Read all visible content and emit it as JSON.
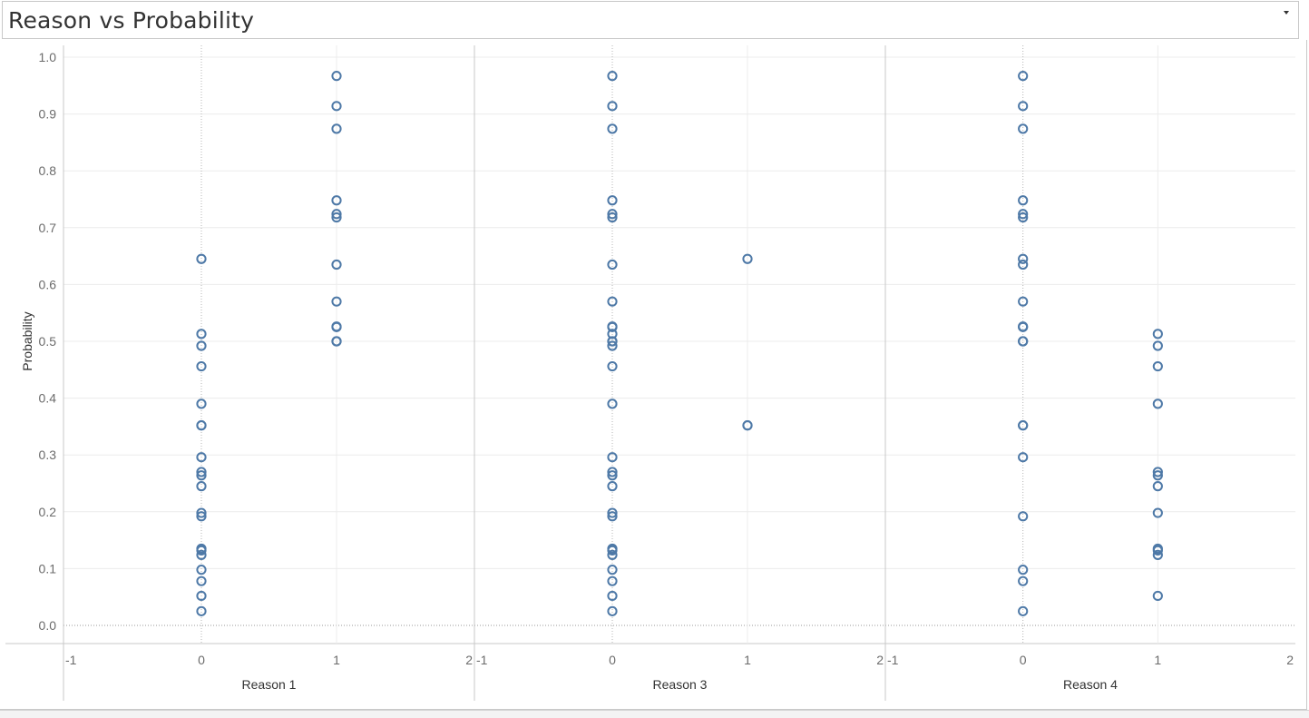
{
  "header": {
    "title": "Reason vs Probability"
  },
  "chart_data": {
    "type": "scatter",
    "title": "Reason vs Probability",
    "ylabel": "Probability",
    "ylim": [
      0.0,
      1.0
    ],
    "yticks": [
      "0.0",
      "0.1",
      "0.2",
      "0.3",
      "0.4",
      "0.5",
      "0.6",
      "0.7",
      "0.8",
      "0.9",
      "1.0"
    ],
    "xlim": [
      -1,
      2
    ],
    "xticks": [
      "-1",
      "0",
      "1",
      "2"
    ],
    "marker": "hollow-circle",
    "marker_color": "#4e79a7",
    "grid": true,
    "panels": [
      {
        "xlabel": "Reason 1",
        "series": [
          {
            "x": 0,
            "values": [
              0.645,
              0.513,
              0.492,
              0.456,
              0.39,
              0.352,
              0.352,
              0.296,
              0.27,
              0.264,
              0.245,
              0.198,
              0.192,
              0.135,
              0.132,
              0.124,
              0.098,
              0.078,
              0.052,
              0.025
            ]
          },
          {
            "x": 1,
            "values": [
              0.967,
              0.914,
              0.874,
              0.748,
              0.724,
              0.718,
              0.635,
              0.57,
              0.526,
              0.525,
              0.5,
              0.5
            ]
          }
        ]
      },
      {
        "xlabel": "Reason 3",
        "series": [
          {
            "x": 0,
            "values": [
              0.967,
              0.914,
              0.874,
              0.748,
              0.724,
              0.718,
              0.635,
              0.57,
              0.526,
              0.525,
              0.513,
              0.5,
              0.5,
              0.492,
              0.456,
              0.39,
              0.296,
              0.27,
              0.264,
              0.245,
              0.198,
              0.192,
              0.135,
              0.132,
              0.124,
              0.098,
              0.078,
              0.052,
              0.025
            ]
          },
          {
            "x": 1,
            "values": [
              0.645,
              0.352,
              0.352
            ]
          }
        ]
      },
      {
        "xlabel": "Reason 4",
        "series": [
          {
            "x": 0,
            "values": [
              0.967,
              0.914,
              0.874,
              0.748,
              0.724,
              0.718,
              0.645,
              0.635,
              0.57,
              0.526,
              0.525,
              0.5,
              0.5,
              0.352,
              0.352,
              0.296,
              0.192,
              0.098,
              0.078,
              0.025
            ]
          },
          {
            "x": 1,
            "values": [
              0.513,
              0.492,
              0.456,
              0.39,
              0.27,
              0.264,
              0.245,
              0.198,
              0.135,
              0.132,
              0.124,
              0.052
            ]
          }
        ]
      }
    ]
  }
}
